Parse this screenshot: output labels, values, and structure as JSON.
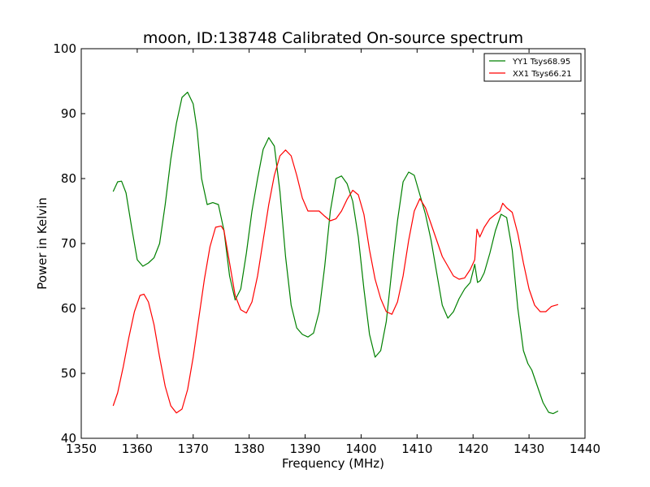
{
  "chart_data": {
    "type": "line",
    "title": "moon, ID:138748 Calibrated On-source spectrum",
    "xlabel": "Frequency (MHz)",
    "ylabel": "Power in Kelvin",
    "xlim": [
      1350,
      1440
    ],
    "ylim": [
      40,
      100
    ],
    "xticks": [
      1350,
      1360,
      1370,
      1380,
      1390,
      1400,
      1410,
      1420,
      1430,
      1440
    ],
    "yticks": [
      40,
      50,
      60,
      70,
      80,
      90,
      100
    ],
    "grid": false,
    "legend_position": "top-right",
    "series": [
      {
        "name": "YY1 Tsys68.95",
        "color": "#008000",
        "x": [
          1355.7,
          1356.5,
          1357.2,
          1358,
          1359,
          1360,
          1361,
          1362,
          1363,
          1364,
          1365,
          1366,
          1367,
          1368,
          1369,
          1370,
          1370.7,
          1371.5,
          1372.5,
          1373.5,
          1374.5,
          1375.5,
          1376.5,
          1377.5,
          1378.5,
          1379.5,
          1380.5,
          1381.5,
          1382.5,
          1383.5,
          1384.5,
          1385.5,
          1386.5,
          1387.5,
          1388.5,
          1389.5,
          1390.5,
          1391.5,
          1392.5,
          1393.5,
          1394.5,
          1395.5,
          1396.5,
          1397.5,
          1398.5,
          1399.5,
          1400.5,
          1401.5,
          1402.5,
          1403.5,
          1404.5,
          1405.5,
          1406.5,
          1407.5,
          1408.5,
          1409.5,
          1410.5,
          1411.5,
          1412.5,
          1413.5,
          1414.5,
          1415.5,
          1416.5,
          1417.5,
          1418.5,
          1419.5,
          1420.3,
          1420.8,
          1421.3,
          1422,
          1423,
          1424,
          1425,
          1426,
          1427,
          1428,
          1429,
          1429.8,
          1430.5,
          1431.5,
          1432.5,
          1433.5,
          1434.3,
          1435.2
        ],
        "y": [
          78.0,
          79.5,
          79.6,
          77.8,
          72.5,
          67.5,
          66.5,
          67.0,
          67.8,
          70.0,
          76.0,
          83.0,
          88.5,
          92.5,
          93.3,
          91.5,
          87.5,
          80.0,
          76.0,
          76.3,
          76.0,
          72.0,
          65.0,
          61.3,
          63.0,
          68.5,
          75.0,
          80.0,
          84.5,
          86.3,
          85.0,
          78.0,
          68.0,
          60.5,
          57.0,
          56.0,
          55.6,
          56.2,
          59.5,
          66.5,
          75.0,
          80.0,
          80.4,
          79.2,
          76.5,
          71.0,
          63.0,
          56.0,
          52.5,
          53.5,
          58.0,
          66.0,
          73.5,
          79.5,
          81.0,
          80.5,
          77.5,
          74.5,
          70.5,
          65.5,
          60.5,
          58.5,
          59.5,
          61.5,
          63.0,
          64.0,
          66.8,
          64.0,
          64.3,
          65.5,
          68.5,
          72.0,
          74.5,
          74.0,
          69.0,
          60.0,
          53.5,
          51.5,
          50.5,
          48.0,
          45.5,
          44.0,
          43.8,
          44.2
        ]
      },
      {
        "name": "XX1 Tsys66.21",
        "color": "#ff0000",
        "x": [
          1355.7,
          1356.5,
          1357.5,
          1358.5,
          1359.5,
          1360.5,
          1361.2,
          1362,
          1363,
          1364,
          1365,
          1366,
          1367,
          1368,
          1369,
          1370,
          1371,
          1372,
          1373,
          1374,
          1375,
          1375.5,
          1376.5,
          1377.5,
          1378.5,
          1379.5,
          1380.5,
          1381.5,
          1382.5,
          1383.5,
          1384.5,
          1385.5,
          1386.5,
          1387.5,
          1388.5,
          1389.5,
          1390.5,
          1391.5,
          1392.5,
          1393.5,
          1394.5,
          1395.5,
          1396.5,
          1397.5,
          1398.5,
          1399.5,
          1400.5,
          1401.5,
          1402.5,
          1403.5,
          1404.5,
          1405.5,
          1406.5,
          1407.5,
          1408.5,
          1409.5,
          1410.5,
          1411.5,
          1412.5,
          1413.5,
          1414.5,
          1415.5,
          1416.5,
          1417.5,
          1418.5,
          1419.5,
          1420.3,
          1420.7,
          1421.2,
          1422,
          1423,
          1424,
          1424.8,
          1425.3,
          1426,
          1427,
          1428,
          1429,
          1430,
          1431,
          1432,
          1433,
          1434,
          1435.2
        ],
        "y": [
          45.0,
          47.0,
          51.0,
          55.5,
          59.5,
          62.0,
          62.2,
          61.0,
          57.5,
          52.5,
          48.0,
          45.0,
          43.9,
          44.5,
          47.5,
          52.5,
          58.5,
          64.5,
          69.5,
          72.5,
          72.7,
          72.0,
          67.0,
          62.0,
          59.8,
          59.3,
          61.0,
          65.0,
          70.5,
          76.0,
          80.5,
          83.5,
          84.4,
          83.5,
          80.5,
          77.0,
          75.0,
          75.0,
          75.0,
          74.2,
          73.5,
          73.8,
          75.0,
          76.8,
          78.2,
          77.5,
          74.5,
          69.0,
          64.5,
          61.5,
          59.5,
          59.1,
          61.0,
          65.0,
          70.5,
          75.0,
          76.9,
          75.5,
          73.0,
          70.5,
          68.0,
          66.5,
          65.0,
          64.5,
          64.7,
          66.0,
          67.5,
          72.2,
          71.0,
          72.5,
          73.8,
          74.5,
          75.0,
          76.2,
          75.5,
          74.8,
          71.5,
          67.0,
          63.0,
          60.5,
          59.5,
          59.5,
          60.3,
          60.6
        ]
      }
    ]
  }
}
